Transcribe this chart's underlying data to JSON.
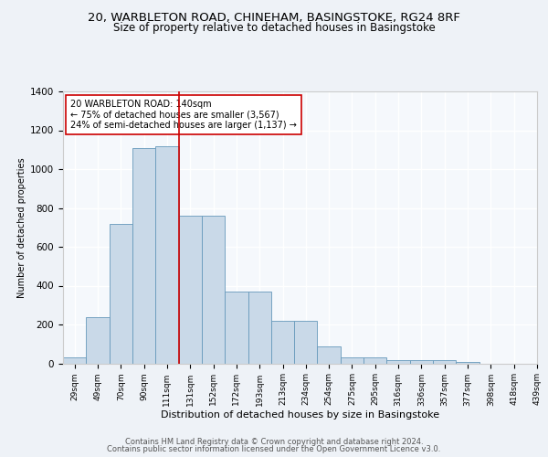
{
  "title_line1": "20, WARBLETON ROAD, CHINEHAM, BASINGSTOKE, RG24 8RF",
  "title_line2": "Size of property relative to detached houses in Basingstoke",
  "xlabel": "Distribution of detached houses by size in Basingstoke",
  "ylabel": "Number of detached properties",
  "bar_values": [
    29,
    236,
    720,
    1110,
    1120,
    760,
    760,
    370,
    370,
    220,
    220,
    85,
    30,
    30,
    18,
    18,
    15,
    8,
    0,
    0
  ],
  "categories": [
    "29sqm",
    "49sqm",
    "70sqm",
    "90sqm",
    "111sqm",
    "131sqm",
    "152sqm",
    "172sqm",
    "193sqm",
    "213sqm",
    "234sqm",
    "254sqm",
    "275sqm",
    "295sqm",
    "316sqm",
    "336sqm",
    "357sqm",
    "377sqm",
    "398sqm",
    "418sqm",
    "439sqm"
  ],
  "bar_color": "#c9d9e8",
  "bar_edge_color": "#6699bb",
  "vline_x": 4.5,
  "vline_color": "#cc0000",
  "annotation_text": "20 WARBLETON ROAD: 140sqm\n← 75% of detached houses are smaller (3,567)\n24% of semi-detached houses are larger (1,137) →",
  "annotation_box_color": "#ffffff",
  "annotation_box_edge_color": "#cc0000",
  "ylim": [
    0,
    1400
  ],
  "bg_color": "#eef2f7",
  "plot_bg_color": "#f5f8fc",
  "footer_line1": "Contains HM Land Registry data © Crown copyright and database right 2024.",
  "footer_line2": "Contains public sector information licensed under the Open Government Licence v3.0.",
  "title_fontsize": 9.5,
  "subtitle_fontsize": 8.5,
  "annotation_fontsize": 7.0,
  "footer_fontsize": 6.0,
  "ylabel_fontsize": 7.0,
  "xlabel_fontsize": 8.0,
  "ytick_fontsize": 7.5,
  "xtick_fontsize": 6.5
}
